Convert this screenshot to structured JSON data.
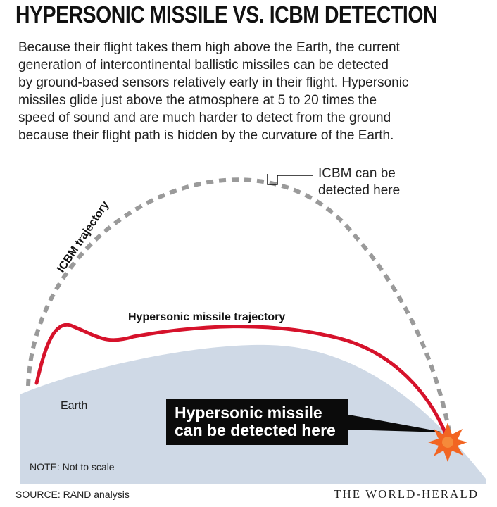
{
  "title": "HYPERSONIC MISSILE VS. ICBM DETECTION",
  "intro_lines": [
    "Because their flight takes them high above the Earth, the current",
    "generation of intercontinental ballistic missiles can be detected",
    "by ground-based sensors relatively early in their flight. Hypersonic",
    "missiles glide just above the atmosphere at 5 to 20 times the",
    "speed of sound and are much harder to detect from the ground",
    "because their flight path is hidden by the curvature of the Earth."
  ],
  "labels": {
    "icbm_detect_line1": "ICBM can be",
    "icbm_detect_line2": "detected here",
    "icbm_trajectory": "ICBM trajectory",
    "hypersonic_trajectory": "Hypersonic missile trajectory",
    "earth": "Earth",
    "callout_line1": "Hypersonic missile",
    "callout_line2": "can be detected here"
  },
  "note": "NOTE: Not to scale",
  "source": "SOURCE: RAND analysis",
  "credit": "THE WORLD-HERALD",
  "colors": {
    "earth": "#cfd9e6",
    "hypersonic_path": "#d6122b",
    "icbm_path": "#9a9a9a",
    "impact": "#f26522",
    "callout_bg": "#0b0b0b"
  },
  "icons": {
    "impact": "explosion-burst-icon"
  }
}
